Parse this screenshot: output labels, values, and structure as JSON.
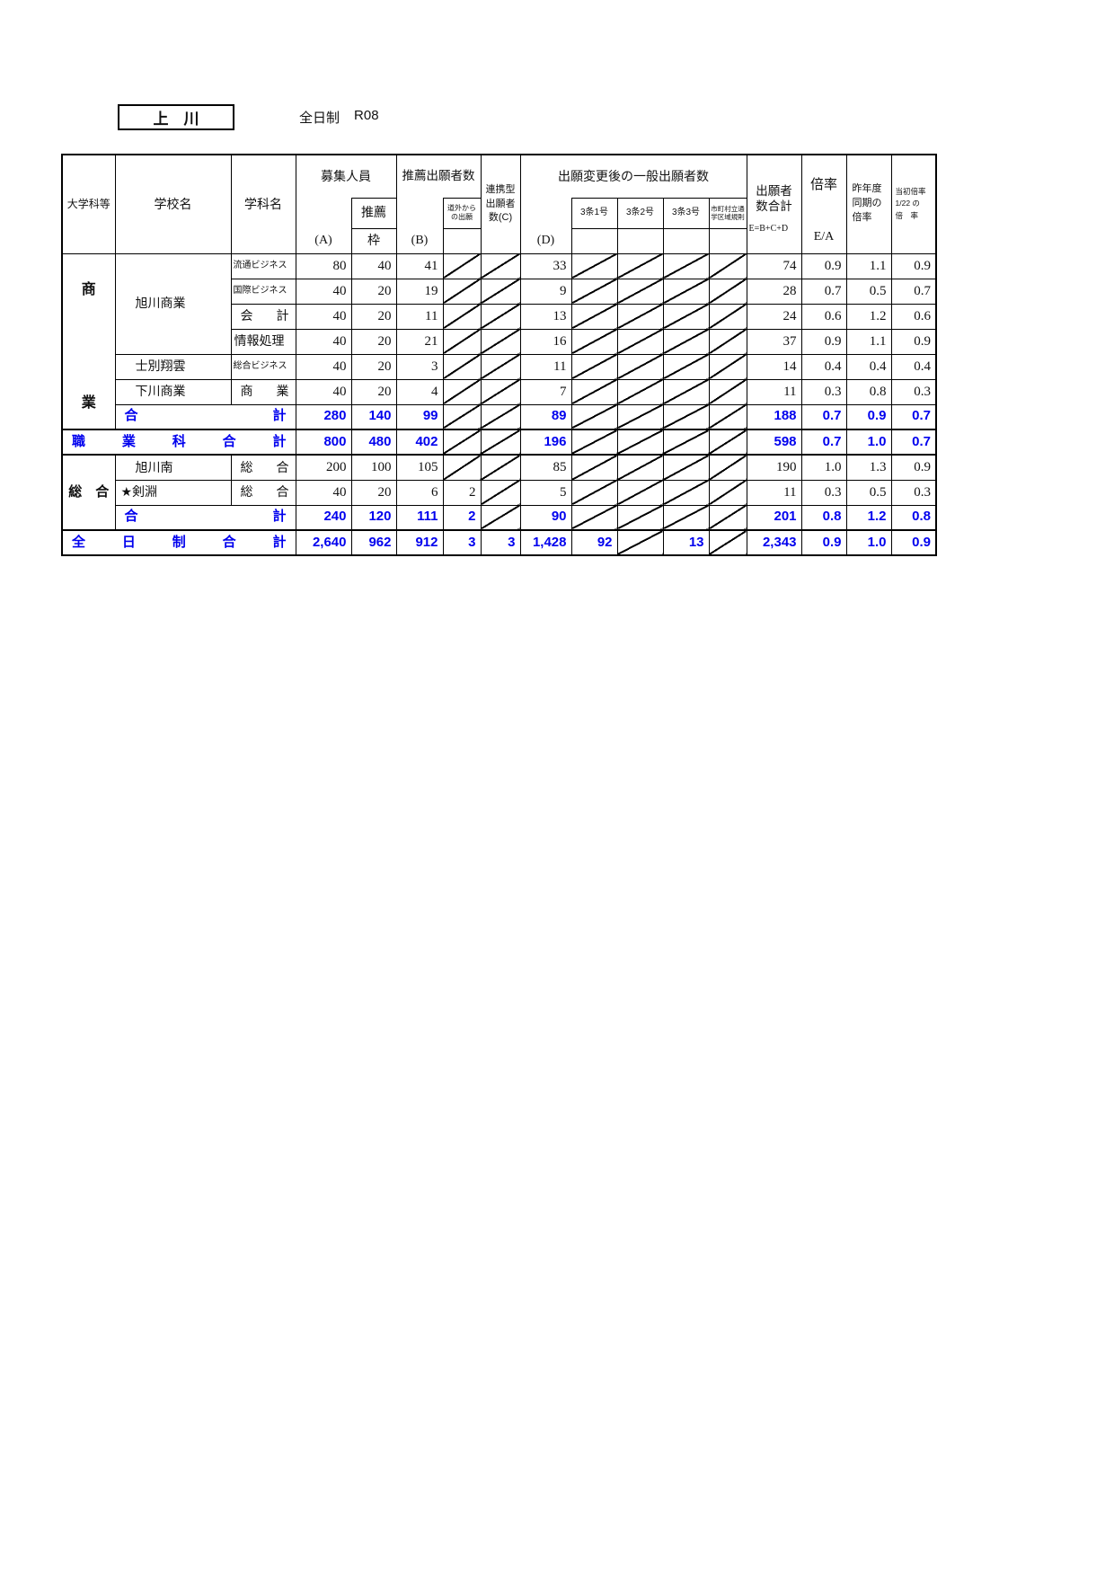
{
  "page": {
    "region_label": "上　川",
    "system_label": "全日制",
    "code": "R08"
  },
  "table": {
    "headers": {
      "dept_category": "大学科等",
      "school_name": "学校名",
      "subject_name": "学科名",
      "recruit": "募集人員",
      "recruit_a": "(A)",
      "suisen": "推薦",
      "suisen_waku": "枠",
      "suisen_applicants": "推薦出願者数",
      "suisen_b": "(B)",
      "dogai": "道外から\nの出願",
      "renkei": "連携型\n出願者\n数(C)",
      "general_after_change": "出願変更後の一般出願者数",
      "general_d": "(D)",
      "art3_1": "3条1号",
      "art3_2": "3条2号",
      "art3_3": "3条3号",
      "municipal": "市町村立通\n学区域規則",
      "total_applicants": "出願者\n数合計",
      "total_formula": "E=B+C+D",
      "ratio": "倍率",
      "ratio_formula": "E/A",
      "last_year": "昨年度\n同期の\n倍率",
      "initial": "当初倍率\n1/22 の\n倍　率"
    },
    "rows": [
      {
        "name": "row-asahikawa-ryutsu-business",
        "cells": [
          {
            "text": "商業",
            "just": true,
            "rowspan": 7,
            "cls": "cat",
            "name": "category-shogyo"
          },
          {
            "text": "旭川商業",
            "rowspan": 4,
            "cls": "school",
            "name": "school-asahikawa-shogyo"
          },
          {
            "text": "流通ビジネス",
            "cls": "subj sm",
            "name": "subject-ryutsu-business"
          },
          {
            "text": "80",
            "cls": "num"
          },
          {
            "text": "40",
            "cls": "num"
          },
          {
            "text": "41",
            "cls": "num"
          },
          {
            "diag": true
          },
          {
            "diag": true
          },
          {
            "text": "33",
            "cls": "num"
          },
          {
            "diag": true
          },
          {
            "diag": true
          },
          {
            "diag": true
          },
          {
            "diag": true
          },
          {
            "text": "74",
            "cls": "num"
          },
          {
            "text": "0.9",
            "cls": "num"
          },
          {
            "text": "1.1",
            "cls": "num"
          },
          {
            "text": "0.9",
            "cls": "num"
          }
        ]
      },
      {
        "name": "row-asahikawa-kokusai-business",
        "cells": [
          {
            "text": "国際ビジネス",
            "cls": "subj sm",
            "name": "subject-kokusai-business"
          },
          {
            "text": "40",
            "cls": "num"
          },
          {
            "text": "20",
            "cls": "num"
          },
          {
            "text": "19",
            "cls": "num"
          },
          {
            "diag": true
          },
          {
            "diag": true
          },
          {
            "text": "9",
            "cls": "num"
          },
          {
            "diag": true
          },
          {
            "diag": true
          },
          {
            "diag": true
          },
          {
            "diag": true
          },
          {
            "text": "28",
            "cls": "num"
          },
          {
            "text": "0.7",
            "cls": "num"
          },
          {
            "text": "0.5",
            "cls": "num"
          },
          {
            "text": "0.7",
            "cls": "num"
          }
        ]
      },
      {
        "name": "row-asahikawa-kaikei",
        "cells": [
          {
            "text": "会計",
            "just": true,
            "cls": "subj",
            "name": "subject-kaikei"
          },
          {
            "text": "40",
            "cls": "num"
          },
          {
            "text": "20",
            "cls": "num"
          },
          {
            "text": "11",
            "cls": "num"
          },
          {
            "diag": true
          },
          {
            "diag": true
          },
          {
            "text": "13",
            "cls": "num"
          },
          {
            "diag": true
          },
          {
            "diag": true
          },
          {
            "diag": true
          },
          {
            "diag": true
          },
          {
            "text": "24",
            "cls": "num"
          },
          {
            "text": "0.6",
            "cls": "num"
          },
          {
            "text": "1.2",
            "cls": "num"
          },
          {
            "text": "0.6",
            "cls": "num"
          }
        ]
      },
      {
        "name": "row-asahikawa-joho-shori",
        "cells": [
          {
            "text": "情報処理",
            "cls": "subj",
            "name": "subject-joho-shori"
          },
          {
            "text": "40",
            "cls": "num"
          },
          {
            "text": "20",
            "cls": "num"
          },
          {
            "text": "21",
            "cls": "num"
          },
          {
            "diag": true
          },
          {
            "diag": true
          },
          {
            "text": "16",
            "cls": "num"
          },
          {
            "diag": true
          },
          {
            "diag": true
          },
          {
            "diag": true
          },
          {
            "diag": true
          },
          {
            "text": "37",
            "cls": "num"
          },
          {
            "text": "0.9",
            "cls": "num"
          },
          {
            "text": "1.1",
            "cls": "num"
          },
          {
            "text": "0.9",
            "cls": "num"
          }
        ]
      },
      {
        "name": "row-shibetsu-shoun",
        "cells": [
          {
            "text": "士別翔雲",
            "cls": "school",
            "name": "school-shibetsu-shoun"
          },
          {
            "text": "総合ビジネス",
            "cls": "subj sm",
            "name": "subject-sogo-business"
          },
          {
            "text": "40",
            "cls": "num"
          },
          {
            "text": "20",
            "cls": "num"
          },
          {
            "text": "3",
            "cls": "num"
          },
          {
            "diag": true
          },
          {
            "diag": true
          },
          {
            "text": "11",
            "cls": "num"
          },
          {
            "diag": true
          },
          {
            "diag": true
          },
          {
            "diag": true
          },
          {
            "diag": true
          },
          {
            "text": "14",
            "cls": "num"
          },
          {
            "text": "0.4",
            "cls": "num"
          },
          {
            "text": "0.4",
            "cls": "num"
          },
          {
            "text": "0.4",
            "cls": "num"
          }
        ]
      },
      {
        "name": "row-shimokawa-shogyo",
        "cells": [
          {
            "text": "下川商業",
            "cls": "school",
            "name": "school-shimokawa-shogyo"
          },
          {
            "text": "商業",
            "just": true,
            "cls": "subj",
            "name": "subject-shogyo"
          },
          {
            "text": "40",
            "cls": "num"
          },
          {
            "text": "20",
            "cls": "num"
          },
          {
            "text": "4",
            "cls": "num"
          },
          {
            "diag": true
          },
          {
            "diag": true
          },
          {
            "text": "7",
            "cls": "num"
          },
          {
            "diag": true
          },
          {
            "diag": true
          },
          {
            "diag": true
          },
          {
            "diag": true
          },
          {
            "text": "11",
            "cls": "num"
          },
          {
            "text": "0.3",
            "cls": "num"
          },
          {
            "text": "0.8",
            "cls": "num"
          },
          {
            "text": "0.3",
            "cls": "num"
          }
        ]
      },
      {
        "name": "row-shogyo-subtotal",
        "cls": "sum",
        "cells": [
          {
            "text": "合計",
            "just": true,
            "colspan": 2,
            "cls": "sumlabel",
            "name": "subtotal-label-shogyo"
          },
          {
            "text": "280",
            "cls": "num"
          },
          {
            "text": "140",
            "cls": "num"
          },
          {
            "text": "99",
            "cls": "num"
          },
          {
            "diag": true
          },
          {
            "diag": true
          },
          {
            "text": "89",
            "cls": "num"
          },
          {
            "diag": true
          },
          {
            "diag": true
          },
          {
            "diag": true
          },
          {
            "diag": true
          },
          {
            "text": "188",
            "cls": "num"
          },
          {
            "text": "0.7",
            "cls": "num"
          },
          {
            "text": "0.9",
            "cls": "num"
          },
          {
            "text": "0.7",
            "cls": "num"
          }
        ]
      },
      {
        "name": "row-shokugyoka-total",
        "cls": "sum tt tb",
        "cells": [
          {
            "text": "職業科合計",
            "just": true,
            "colspan": 3,
            "cls": "sumlabel",
            "name": "vocational-total-label"
          },
          {
            "text": "800",
            "cls": "num"
          },
          {
            "text": "480",
            "cls": "num"
          },
          {
            "text": "402",
            "cls": "num"
          },
          {
            "diag": true
          },
          {
            "diag": true
          },
          {
            "text": "196",
            "cls": "num"
          },
          {
            "diag": true
          },
          {
            "diag": true
          },
          {
            "diag": true
          },
          {
            "diag": true
          },
          {
            "text": "598",
            "cls": "num"
          },
          {
            "text": "0.7",
            "cls": "num"
          },
          {
            "text": "1.0",
            "cls": "num"
          },
          {
            "text": "0.7",
            "cls": "num"
          }
        ]
      },
      {
        "name": "row-asahikawa-minami",
        "cells": [
          {
            "text": "総　合",
            "rowspan": 3,
            "cls": "cath",
            "name": "category-sogo"
          },
          {
            "text": "旭川南",
            "cls": "school",
            "name": "school-asahikawa-minami"
          },
          {
            "text": "総合",
            "just": true,
            "cls": "subj",
            "name": "subject-sogo"
          },
          {
            "text": "200",
            "cls": "num"
          },
          {
            "text": "100",
            "cls": "num"
          },
          {
            "text": "105",
            "cls": "num"
          },
          {
            "diag": true
          },
          {
            "diag": true
          },
          {
            "text": "85",
            "cls": "num"
          },
          {
            "diag": true
          },
          {
            "diag": true
          },
          {
            "diag": true
          },
          {
            "diag": true
          },
          {
            "text": "190",
            "cls": "num"
          },
          {
            "text": "1.0",
            "cls": "num"
          },
          {
            "text": "1.3",
            "cls": "num"
          },
          {
            "text": "0.9",
            "cls": "num"
          }
        ]
      },
      {
        "name": "row-kembuchi",
        "cells": [
          {
            "text": "★剣淵",
            "cls": "school starred",
            "name": "school-kembuchi"
          },
          {
            "text": "総合",
            "just": true,
            "cls": "subj",
            "name": "subject-sogo"
          },
          {
            "text": "40",
            "cls": "num"
          },
          {
            "text": "20",
            "cls": "num"
          },
          {
            "text": "6",
            "cls": "num"
          },
          {
            "text": "2",
            "cls": "num"
          },
          {
            "diag": true
          },
          {
            "text": "5",
            "cls": "num"
          },
          {
            "diag": true
          },
          {
            "diag": true
          },
          {
            "diag": true
          },
          {
            "diag": true
          },
          {
            "text": "11",
            "cls": "num"
          },
          {
            "text": "0.3",
            "cls": "num"
          },
          {
            "text": "0.5",
            "cls": "num"
          },
          {
            "text": "0.3",
            "cls": "num"
          }
        ]
      },
      {
        "name": "row-sogo-subtotal",
        "cls": "sum",
        "cells": [
          {
            "text": "合計",
            "just": true,
            "colspan": 2,
            "cls": "sumlabel",
            "name": "subtotal-label-sogo"
          },
          {
            "text": "240",
            "cls": "num"
          },
          {
            "text": "120",
            "cls": "num"
          },
          {
            "text": "111",
            "cls": "num"
          },
          {
            "text": "2",
            "cls": "num"
          },
          {
            "diag": true
          },
          {
            "text": "90",
            "cls": "num"
          },
          {
            "diag": true
          },
          {
            "diag": true
          },
          {
            "diag": true
          },
          {
            "diag": true
          },
          {
            "text": "201",
            "cls": "num"
          },
          {
            "text": "0.8",
            "cls": "num"
          },
          {
            "text": "1.2",
            "cls": "num"
          },
          {
            "text": "0.8",
            "cls": "num"
          }
        ]
      },
      {
        "name": "row-zennichisei-total",
        "cls": "sum tt",
        "cells": [
          {
            "text": "全日制合計",
            "just": true,
            "colspan": 3,
            "cls": "sumlabel",
            "name": "fulltime-total-label"
          },
          {
            "text": "2,640",
            "cls": "num"
          },
          {
            "text": "962",
            "cls": "num"
          },
          {
            "text": "912",
            "cls": "num"
          },
          {
            "text": "3",
            "cls": "num"
          },
          {
            "text": "3",
            "cls": "num"
          },
          {
            "text": "1,428",
            "cls": "num"
          },
          {
            "text": "92",
            "cls": "num"
          },
          {
            "diag": true
          },
          {
            "text": "13",
            "cls": "num"
          },
          {
            "diag": true
          },
          {
            "text": "2,343",
            "cls": "num"
          },
          {
            "text": "0.9",
            "cls": "num"
          },
          {
            "text": "1.0",
            "cls": "num"
          },
          {
            "text": "0.9",
            "cls": "num"
          }
        ]
      }
    ]
  }
}
